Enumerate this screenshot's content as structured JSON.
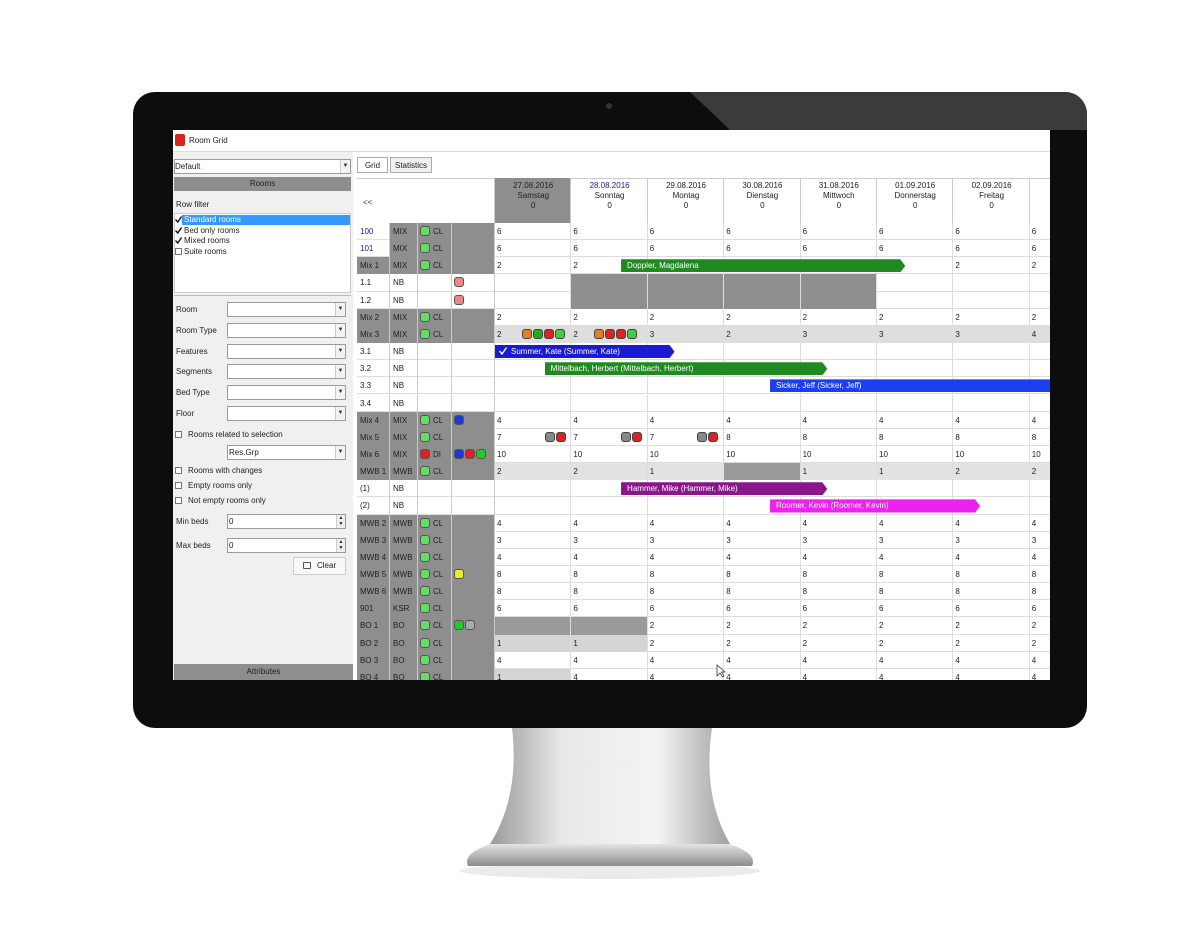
{
  "window": {
    "title": "Room Grid"
  },
  "sidebar": {
    "view": "Default",
    "rooms_header": "Rooms",
    "row_filter": "Row filter",
    "filters": [
      {
        "label": "Standard rooms",
        "checked": true
      },
      {
        "label": "Bed only rooms",
        "checked": true
      },
      {
        "label": "Mixed rooms",
        "checked": true
      },
      {
        "label": "Suite rooms",
        "checked": false
      }
    ],
    "fields": [
      "Room",
      "Room Type",
      "Features",
      "Segments",
      "Bed Type",
      "Floor"
    ],
    "related": {
      "label": "Rooms related to selection",
      "checked": false,
      "value": "Res.Grp"
    },
    "options": [
      {
        "label": "Rooms with changes",
        "checked": false
      },
      {
        "label": "Empty rooms only",
        "checked": false
      },
      {
        "label": "Not empty rooms only",
        "checked": false
      }
    ],
    "min_beds": {
      "label": "Min beds",
      "value": 0
    },
    "max_beds": {
      "label": "Max beds",
      "value": 0
    },
    "clear": "Clear",
    "attributes": "Attributes"
  },
  "grid": {
    "tabs": [
      "Grid",
      "Statistics"
    ],
    "back": "<<",
    "days": [
      {
        "date": "27.08.2016",
        "weekday": "Samstag",
        "count": 0
      },
      {
        "date": "28.08.2016",
        "weekday": "Sonntag",
        "count": 0
      },
      {
        "date": "29.08.2016",
        "weekday": "Montag",
        "count": 0
      },
      {
        "date": "30.08.2016",
        "weekday": "Dienstag",
        "count": 0
      },
      {
        "date": "31.08.2016",
        "weekday": "Mittwoch",
        "count": 0
      },
      {
        "date": "01.09.2016",
        "weekday": "Donnerstag",
        "count": 0
      },
      {
        "date": "02.09.2016",
        "weekday": "Freitag",
        "count": 0
      }
    ],
    "rows": [
      {
        "name": "100",
        "type": "MIX",
        "status": "CL",
        "cells": [
          6,
          6,
          6,
          6,
          6,
          6,
          6,
          6
        ]
      },
      {
        "name": "101",
        "type": "MIX",
        "status": "CL",
        "cells": [
          6,
          6,
          6,
          6,
          6,
          6,
          6,
          6
        ]
      },
      {
        "name": "Mix 1",
        "type": "MIX",
        "status": "CL",
        "cells": [
          2,
          2,
          null,
          null,
          null,
          null,
          2,
          2
        ],
        "booking": "Doppler,  Magdalena"
      },
      {
        "name": "1.1",
        "type": "NB"
      },
      {
        "name": "1.2",
        "type": "NB"
      },
      {
        "name": "Mix 2",
        "type": "MIX",
        "status": "CL",
        "cells": [
          2,
          2,
          2,
          2,
          2,
          2,
          2,
          2
        ]
      },
      {
        "name": "Mix 3",
        "type": "MIX",
        "status": "CL",
        "cells": [
          2,
          2,
          3,
          2,
          3,
          3,
          3,
          4
        ]
      },
      {
        "name": "3.1",
        "type": "NB",
        "booking": "Summer, Kate (Summer, Kate)"
      },
      {
        "name": "3.2",
        "type": "NB",
        "booking": "Mittelbach, Herbert (Mittelbach, Herbert)"
      },
      {
        "name": "3.3",
        "type": "NB",
        "booking": "Sicker, Jeff (Sicker, Jeff)"
      },
      {
        "name": "3.4",
        "type": "NB"
      },
      {
        "name": "Mix 4",
        "type": "MIX",
        "status": "CL",
        "cells": [
          4,
          4,
          4,
          4,
          4,
          4,
          4,
          4
        ]
      },
      {
        "name": "Mix 5",
        "type": "MIX",
        "status": "CL",
        "cells": [
          7,
          7,
          7,
          8,
          8,
          8,
          8,
          8
        ]
      },
      {
        "name": "Mix 6",
        "type": "MIX",
        "status": "DI",
        "cells": [
          10,
          10,
          10,
          10,
          10,
          10,
          10,
          10
        ]
      },
      {
        "name": "MWB 1",
        "type": "MWB",
        "status": "CL",
        "cells": [
          2,
          2,
          1,
          null,
          1,
          1,
          2,
          2
        ]
      },
      {
        "name": "(1)",
        "type": "NB",
        "booking": "Hammer, Mike (Hammer, Mike)"
      },
      {
        "name": "(2)",
        "type": "NB",
        "booking": "Roomer, Kevin (Roomer, Kevin)"
      },
      {
        "name": "MWB 2",
        "type": "MWB",
        "status": "CL",
        "cells": [
          4,
          4,
          4,
          4,
          4,
          4,
          4,
          4
        ]
      },
      {
        "name": "MWB 3",
        "type": "MWB",
        "status": "CL",
        "cells": [
          3,
          3,
          3,
          3,
          3,
          3,
          3,
          3
        ]
      },
      {
        "name": "MWB 4",
        "type": "MWB",
        "status": "CL",
        "cells": [
          4,
          4,
          4,
          4,
          4,
          4,
          4,
          4
        ]
      },
      {
        "name": "MWB 5",
        "type": "MWB",
        "status": "CL",
        "cells": [
          8,
          8,
          8,
          8,
          8,
          8,
          8,
          8
        ]
      },
      {
        "name": "MWB 6",
        "type": "MWB",
        "status": "CL",
        "cells": [
          8,
          8,
          8,
          8,
          8,
          8,
          8,
          8
        ]
      },
      {
        "name": "901",
        "type": "KSR",
        "status": "CL",
        "cells": [
          6,
          6,
          6,
          6,
          6,
          6,
          6,
          6
        ]
      },
      {
        "name": "BO 1",
        "type": "BO",
        "status": "CL",
        "cells": [
          null,
          null,
          2,
          2,
          2,
          2,
          2,
          2
        ]
      },
      {
        "name": "BO 2",
        "type": "BO",
        "status": "CL",
        "cells": [
          1,
          1,
          2,
          2,
          2,
          2,
          2,
          2
        ]
      },
      {
        "name": "BO 3",
        "type": "BO",
        "status": "CL",
        "cells": [
          4,
          4,
          4,
          4,
          4,
          4,
          4,
          4
        ]
      },
      {
        "name": "BO 4",
        "type": "BO",
        "status": "CL",
        "cells": [
          1,
          4,
          4,
          4,
          4,
          4,
          4,
          4
        ]
      }
    ]
  }
}
